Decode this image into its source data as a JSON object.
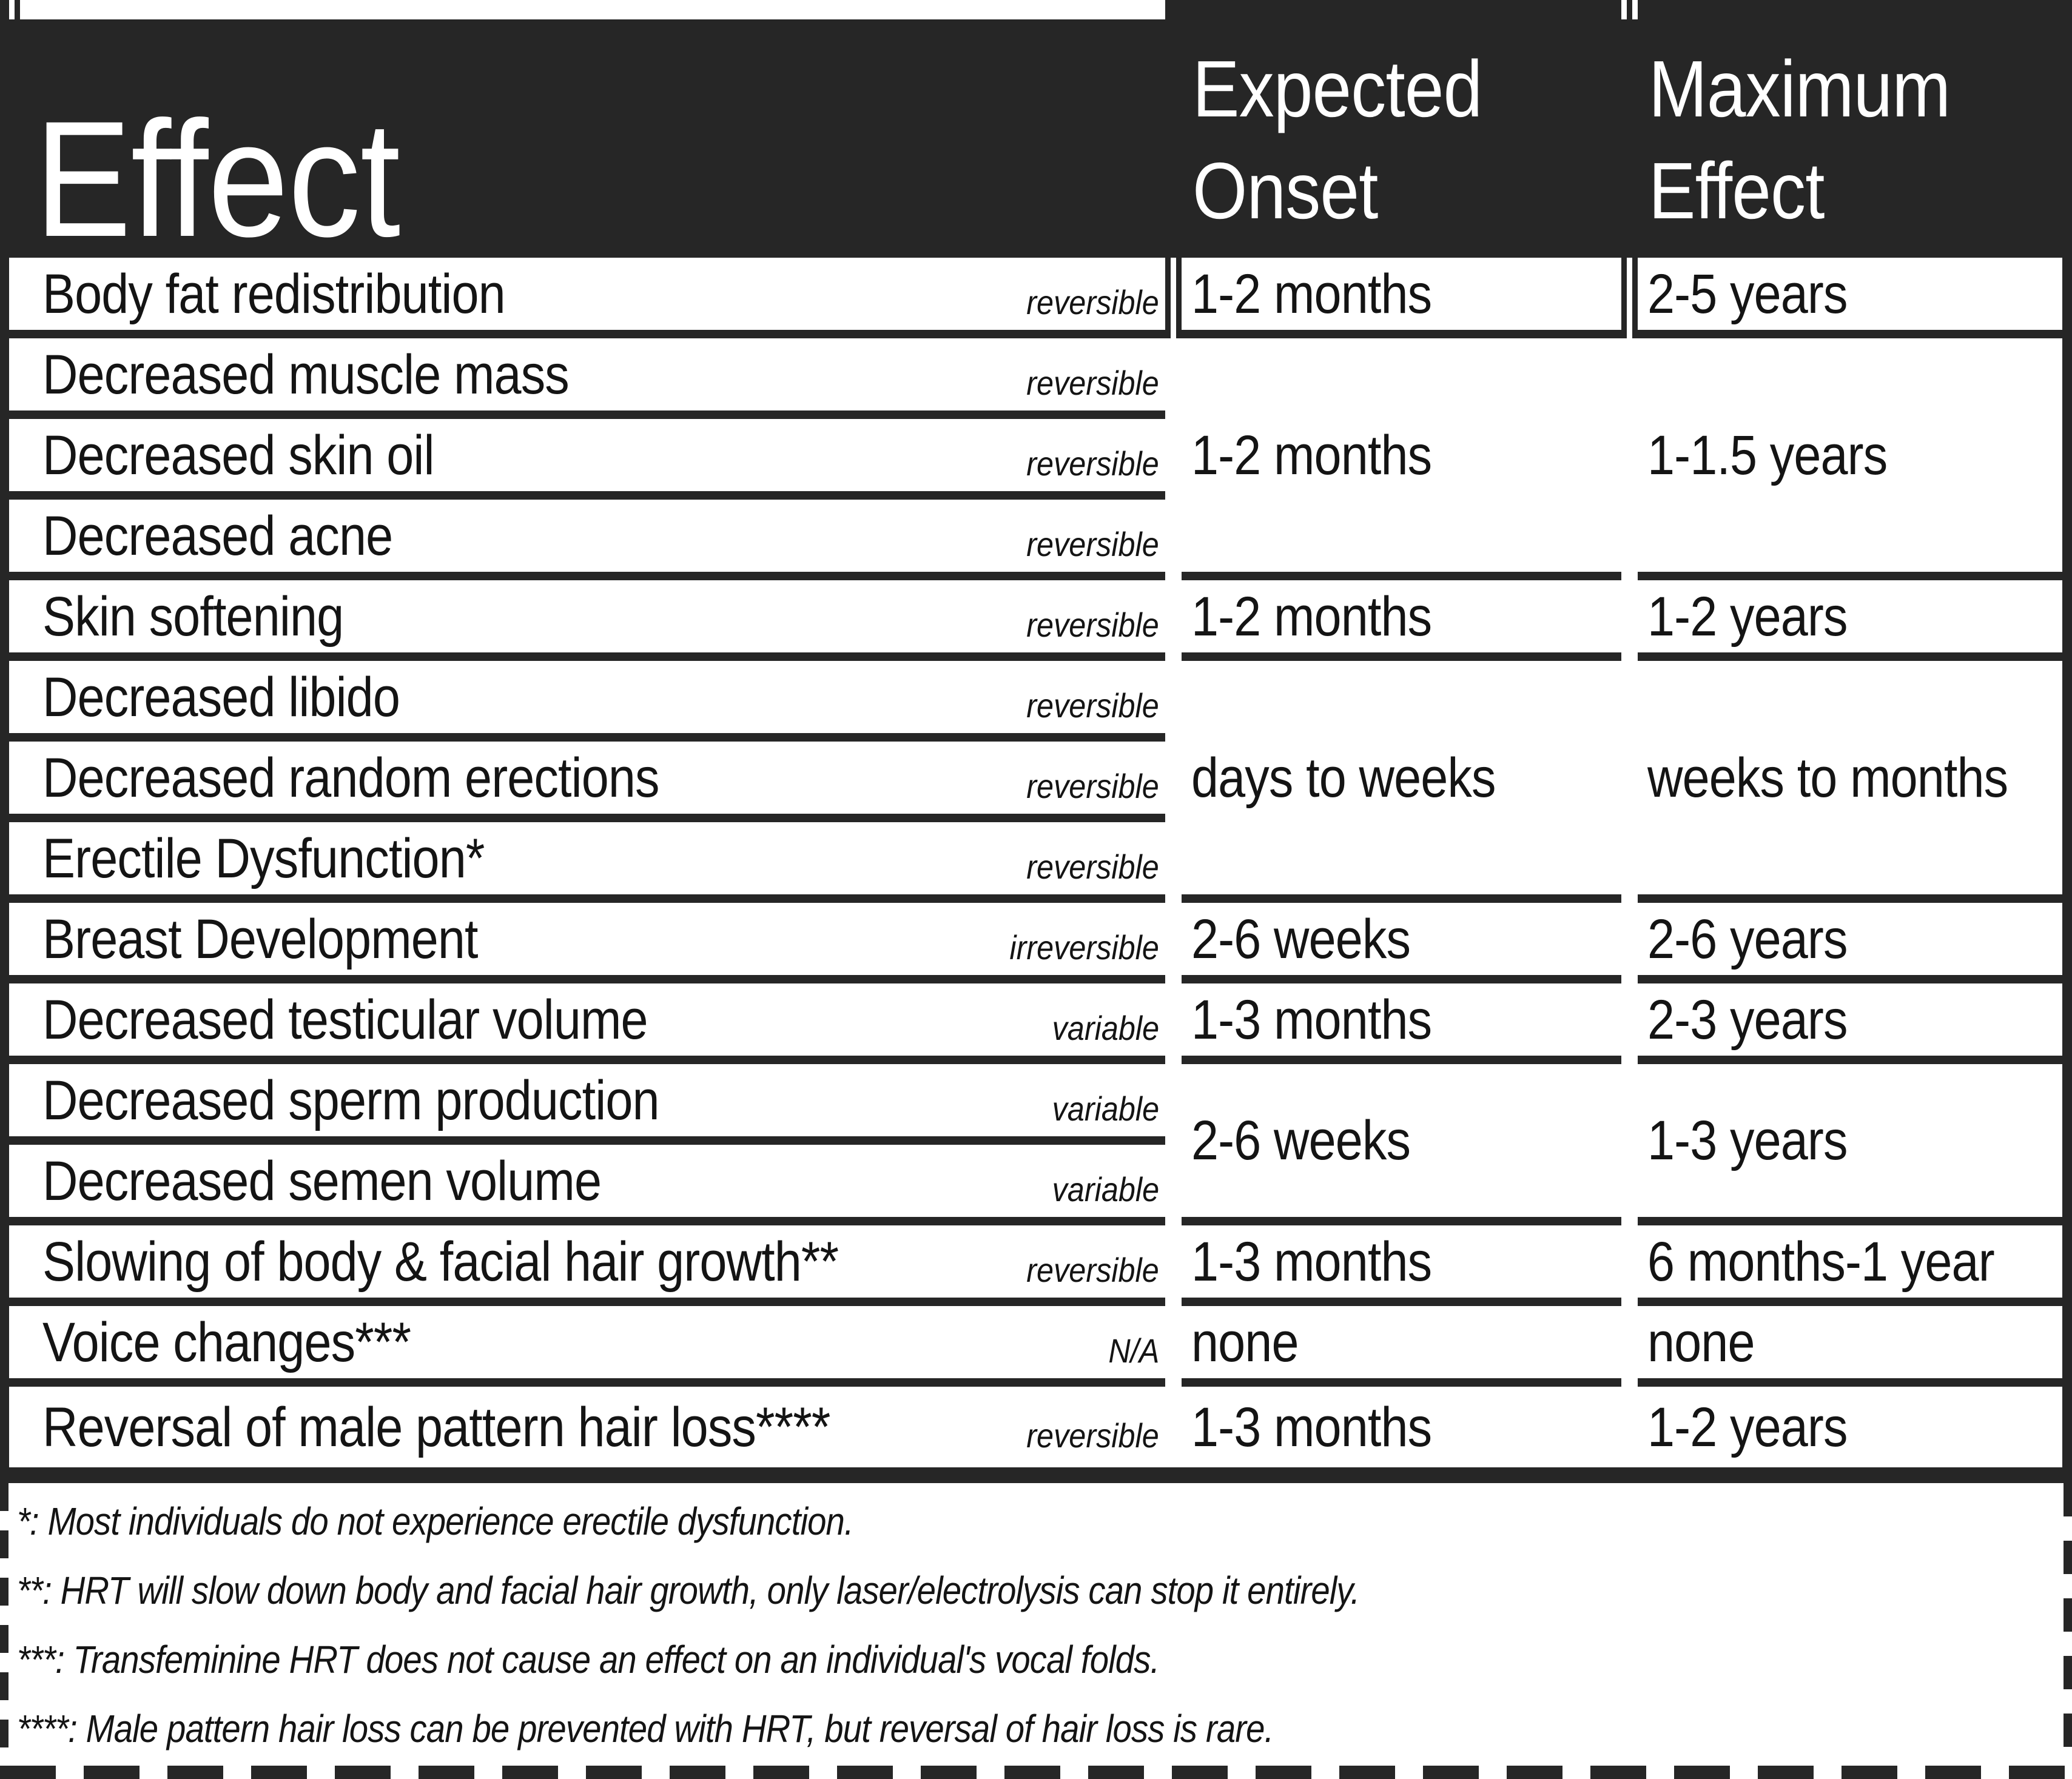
{
  "header": {
    "effect": "Effect",
    "onset_line1": "Expected",
    "onset_line2": "Onset",
    "max_line1": "Maximum",
    "max_line2": "Effect"
  },
  "colors": {
    "header_background": "#262626",
    "grid_lines": "#262626",
    "text": "#141414",
    "background": "#ffffff"
  },
  "effects": [
    {
      "label": "Body fat redistribution",
      "reversibility": "reversible"
    },
    {
      "label": "Decreased muscle mass",
      "reversibility": "reversible"
    },
    {
      "label": "Decreased skin oil",
      "reversibility": "reversible"
    },
    {
      "label": "Decreased acne",
      "reversibility": "reversible"
    },
    {
      "label": "Skin softening",
      "reversibility": "reversible"
    },
    {
      "label": "Decreased libido",
      "reversibility": "reversible"
    },
    {
      "label": "Decreased random erections",
      "reversibility": "reversible"
    },
    {
      "label": "Erectile Dysfunction*",
      "reversibility": "reversible"
    },
    {
      "label": "Breast Development",
      "reversibility": "irreversible"
    },
    {
      "label": "Decreased testicular volume",
      "reversibility": "variable"
    },
    {
      "label": "Decreased sperm production",
      "reversibility": "variable"
    },
    {
      "label": "Decreased semen volume",
      "reversibility": "variable"
    },
    {
      "label": "Slowing of body & facial hair growth**",
      "reversibility": "reversible"
    },
    {
      "label": "Voice changes***",
      "reversibility": "N/A"
    },
    {
      "label": "Reversal of male pattern hair loss****",
      "reversibility": "reversible"
    }
  ],
  "expected_onset": [
    {
      "value": "1-2 months",
      "rows": "Body fat redistribution"
    },
    {
      "value": "1-2 months",
      "rows": "Decreased muscle mass / skin oil / acne"
    },
    {
      "value": "1-2 months",
      "rows": "Skin softening"
    },
    {
      "value": "days to weeks",
      "rows": "Decreased libido / random erections / erectile dysfunction"
    },
    {
      "value": "2-6 weeks",
      "rows": "Breast Development"
    },
    {
      "value": "1-3 months",
      "rows": "Decreased testicular volume"
    },
    {
      "value": "2-6 weeks",
      "rows": "Decreased sperm production / semen volume"
    },
    {
      "value": "1-3 months",
      "rows": "Slowing of body & facial hair growth"
    },
    {
      "value": "none",
      "rows": "Voice changes"
    },
    {
      "value": "1-3 months",
      "rows": "Reversal of male pattern hair loss"
    }
  ],
  "maximum_effect": [
    {
      "value": "2-5 years",
      "rows": "Body fat redistribution"
    },
    {
      "value": "1-1.5 years",
      "rows": "Decreased muscle mass / skin oil / acne"
    },
    {
      "value": "1-2 years",
      "rows": "Skin softening"
    },
    {
      "value": "weeks to months",
      "rows": "Decreased libido / random erections / erectile dysfunction"
    },
    {
      "value": "2-6 years",
      "rows": "Breast Development"
    },
    {
      "value": "2-3 years",
      "rows": "Decreased testicular volume"
    },
    {
      "value": "1-3 years",
      "rows": "Decreased sperm production / semen volume"
    },
    {
      "value": "6 months-1 year",
      "rows": "Slowing of body & facial hair growth"
    },
    {
      "value": "none",
      "rows": "Voice changes"
    },
    {
      "value": "1-2 years",
      "rows": "Reversal of male pattern hair loss"
    }
  ],
  "footnotes": [
    "*: Most individuals do not experience erectile dysfunction.",
    "**: HRT will slow down body and facial hair growth, only laser/electrolysis can stop it entirely.",
    "***: Transfeminine HRT does not cause an effect on an individual's vocal folds.",
    "****: Male pattern hair loss can be prevented with HRT, but reversal of hair loss is rare."
  ]
}
